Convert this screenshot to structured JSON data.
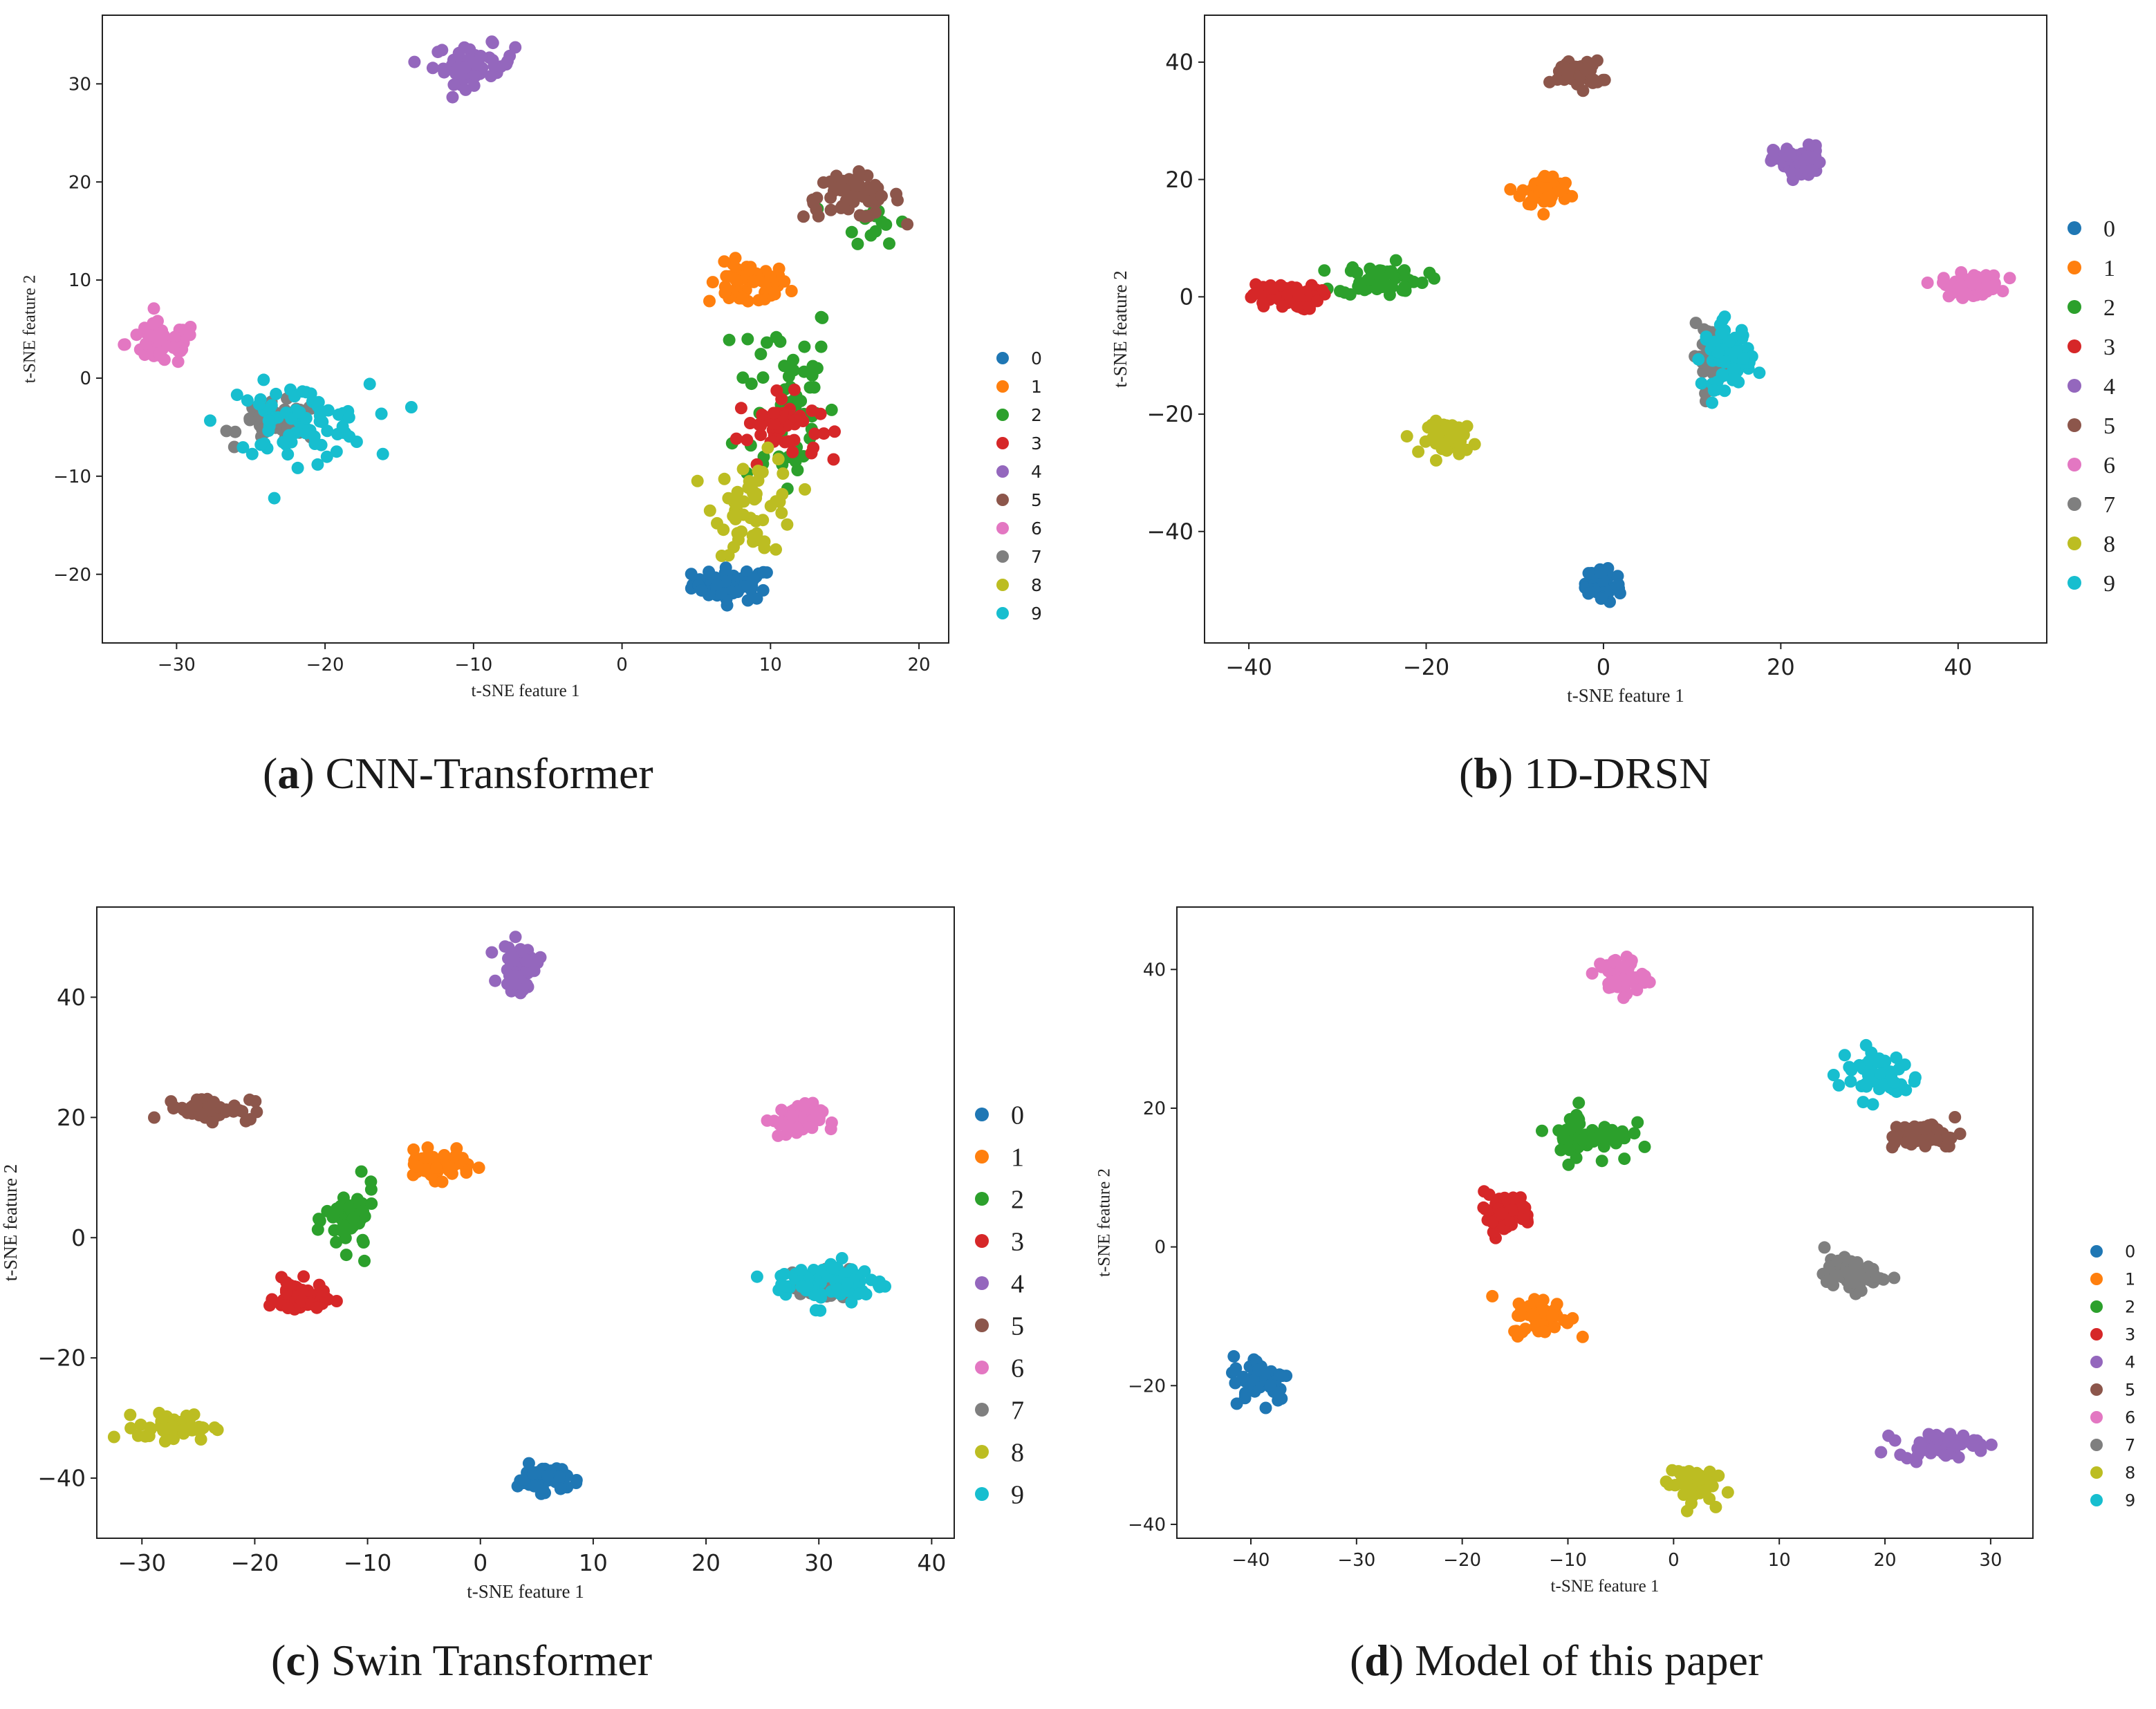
{
  "palette": [
    "#1f77b4",
    "#ff7f0e",
    "#2ca02c",
    "#d62728",
    "#9467bd",
    "#8c564b",
    "#e377c2",
    "#7f7f7f",
    "#bcbd22",
    "#17becf"
  ],
  "captions": [
    {
      "letter": "a",
      "text": "CNN-Transformer"
    },
    {
      "letter": "b",
      "text": "1D-DRSN"
    },
    {
      "letter": "c",
      "text": "Swin Transformer"
    },
    {
      "letter": "d",
      "text": "Model of this paper"
    }
  ],
  "chart_data": [
    {
      "type": "scatter",
      "title": "(a) CNN-Transformer",
      "xlabel": "t-SNE feature 1",
      "ylabel": "t-SNE feature 2",
      "xlim": [
        -35,
        22
      ],
      "ylim": [
        -27,
        37
      ],
      "xticks": [
        -30,
        -20,
        -10,
        0,
        10,
        20
      ],
      "yticks": [
        -20,
        -10,
        0,
        10,
        20,
        30
      ],
      "legend": [
        "0",
        "1",
        "2",
        "3",
        "4",
        "5",
        "6",
        "7",
        "8",
        "9"
      ],
      "legend_position": "right-outside",
      "clusters": [
        {
          "label": "0",
          "center": [
            7.5,
            -21
          ],
          "spread": [
            2.5,
            1.5
          ],
          "count": 55
        },
        {
          "label": "1",
          "center": [
            8.5,
            9.5
          ],
          "spread": [
            2.5,
            2
          ],
          "count": 55
        },
        {
          "label": "2",
          "center": [
            11,
            -2
          ],
          "spread": [
            3,
            10
          ],
          "count": 60
        },
        {
          "label": "2",
          "center": [
            17,
            16
          ],
          "spread": [
            2,
            2
          ],
          "count": 15
        },
        {
          "label": "3",
          "center": [
            10.5,
            -5
          ],
          "spread": [
            2.5,
            3
          ],
          "count": 50
        },
        {
          "label": "4",
          "center": [
            -10,
            32
          ],
          "spread": [
            2.5,
            1.8
          ],
          "count": 55
        },
        {
          "label": "5",
          "center": [
            15.5,
            18.5
          ],
          "spread": [
            3,
            2
          ],
          "count": 55
        },
        {
          "label": "6",
          "center": [
            -31,
            3.5
          ],
          "spread": [
            2.2,
            2
          ],
          "count": 55
        },
        {
          "label": "7",
          "center": [
            -23,
            -4.5
          ],
          "spread": [
            2.5,
            1.8
          ],
          "count": 50
        },
        {
          "label": "8",
          "center": [
            9,
            -13
          ],
          "spread": [
            2.5,
            4.5
          ],
          "count": 55
        },
        {
          "label": "9",
          "center": [
            -22,
            -4.5
          ],
          "spread": [
            4.5,
            3.5
          ],
          "count": 80
        }
      ]
    },
    {
      "type": "scatter",
      "title": "(b) 1D-DRSN",
      "xlabel": "t-SNE feature 1",
      "ylabel": "t-SNE feature 2",
      "xlim": [
        -45,
        50
      ],
      "ylim": [
        -59,
        48
      ],
      "xticks": [
        -40,
        -20,
        0,
        20,
        40
      ],
      "yticks": [
        -40,
        -20,
        0,
        20,
        40
      ],
      "legend": [
        "0",
        "1",
        "2",
        "3",
        "4",
        "5",
        "6",
        "7",
        "8",
        "9"
      ],
      "legend_position": "right-outside",
      "clusters": [
        {
          "label": "0",
          "center": [
            0,
            -49
          ],
          "spread": [
            1.8,
            3
          ],
          "count": 55
        },
        {
          "label": "1",
          "center": [
            -6.5,
            18
          ],
          "spread": [
            2.5,
            2.5
          ],
          "count": 55
        },
        {
          "label": "2",
          "center": [
            -25,
            3
          ],
          "spread": [
            4.5,
            2.5
          ],
          "count": 60
        },
        {
          "label": "3",
          "center": [
            -36,
            0
          ],
          "spread": [
            3.5,
            2
          ],
          "count": 65
        },
        {
          "label": "4",
          "center": [
            22,
            23
          ],
          "spread": [
            2.5,
            2.5
          ],
          "count": 55
        },
        {
          "label": "5",
          "center": [
            -3,
            38
          ],
          "spread": [
            2.5,
            2
          ],
          "count": 55
        },
        {
          "label": "6",
          "center": [
            41.5,
            2
          ],
          "spread": [
            3,
            1.8
          ],
          "count": 55
        },
        {
          "label": "7",
          "center": [
            12,
            -10
          ],
          "spread": [
            1.8,
            4.5
          ],
          "count": 45
        },
        {
          "label": "8",
          "center": [
            -17,
            -24
          ],
          "spread": [
            2.5,
            2.5
          ],
          "count": 55
        },
        {
          "label": "9",
          "center": [
            14,
            -10
          ],
          "spread": [
            2.5,
            5
          ],
          "count": 70
        }
      ]
    },
    {
      "type": "scatter",
      "title": "(c) Swin Transformer",
      "xlabel": "t-SNE feature 1",
      "ylabel": "t-SNE feature 2",
      "xlim": [
        -34,
        42
      ],
      "ylim": [
        -50,
        55
      ],
      "xticks": [
        -30,
        -20,
        -10,
        0,
        10,
        20,
        30,
        40
      ],
      "yticks": [
        -40,
        -20,
        0,
        20,
        40
      ],
      "legend": [
        "0",
        "1",
        "2",
        "3",
        "4",
        "5",
        "6",
        "7",
        "8",
        "9"
      ],
      "legend_position": "right-outside",
      "clusters": [
        {
          "label": "0",
          "center": [
            5.5,
            -40
          ],
          "spread": [
            2,
            2
          ],
          "count": 55
        },
        {
          "label": "1",
          "center": [
            -4,
            12
          ],
          "spread": [
            3,
            2
          ],
          "count": 55
        },
        {
          "label": "2",
          "center": [
            -11.5,
            3
          ],
          "spread": [
            2,
            5
          ],
          "count": 55
        },
        {
          "label": "3",
          "center": [
            -16,
            -10
          ],
          "spread": [
            2,
            2.5
          ],
          "count": 55
        },
        {
          "label": "4",
          "center": [
            3.5,
            45
          ],
          "spread": [
            1.5,
            3.5
          ],
          "count": 55
        },
        {
          "label": "5",
          "center": [
            -24,
            21.5
          ],
          "spread": [
            3.5,
            1.8
          ],
          "count": 55
        },
        {
          "label": "6",
          "center": [
            28,
            19.5
          ],
          "spread": [
            2,
            2.5
          ],
          "count": 55
        },
        {
          "label": "7",
          "center": [
            30.5,
            -8
          ],
          "spread": [
            2,
            2.5
          ],
          "count": 45
        },
        {
          "label": "8",
          "center": [
            -27,
            -31.5
          ],
          "spread": [
            3,
            2
          ],
          "count": 55
        },
        {
          "label": "9",
          "center": [
            31,
            -7.5
          ],
          "spread": [
            4.5,
            3.5
          ],
          "count": 75
        }
      ]
    },
    {
      "type": "scatter",
      "title": "(d) Model of this paper",
      "xlabel": "t-SNE feature 1",
      "ylabel": "t-SNE feature 2",
      "xlim": [
        -47,
        34
      ],
      "ylim": [
        -42,
        49
      ],
      "xticks": [
        -40,
        -30,
        -20,
        -10,
        0,
        10,
        20,
        30
      ],
      "yticks": [
        -40,
        -20,
        0,
        20,
        40
      ],
      "legend": [
        "0",
        "1",
        "2",
        "3",
        "4",
        "5",
        "6",
        "7",
        "8",
        "9"
      ],
      "legend_position": "right-outside",
      "clusters": [
        {
          "label": "0",
          "center": [
            -39,
            -19
          ],
          "spread": [
            2.5,
            3
          ],
          "count": 55
        },
        {
          "label": "1",
          "center": [
            -12.5,
            -10
          ],
          "spread": [
            2.5,
            2.5
          ],
          "count": 55
        },
        {
          "label": "2",
          "center": [
            -8,
            16
          ],
          "spread": [
            3.5,
            3.5
          ],
          "count": 55
        },
        {
          "label": "3",
          "center": [
            -16,
            5
          ],
          "spread": [
            2.5,
            2.5
          ],
          "count": 55
        },
        {
          "label": "4",
          "center": [
            25,
            -28.5
          ],
          "spread": [
            3.5,
            1.5
          ],
          "count": 55
        },
        {
          "label": "5",
          "center": [
            24,
            16
          ],
          "spread": [
            3,
            1.8
          ],
          "count": 55
        },
        {
          "label": "6",
          "center": [
            -5,
            39
          ],
          "spread": [
            2,
            2.5
          ],
          "count": 55
        },
        {
          "label": "7",
          "center": [
            17,
            -4
          ],
          "spread": [
            2.5,
            2
          ],
          "count": 55
        },
        {
          "label": "8",
          "center": [
            1.5,
            -34
          ],
          "spread": [
            2,
            2.5
          ],
          "count": 55
        },
        {
          "label": "9",
          "center": [
            19.5,
            25
          ],
          "spread": [
            3.5,
            3.5
          ],
          "count": 55
        }
      ]
    }
  ]
}
